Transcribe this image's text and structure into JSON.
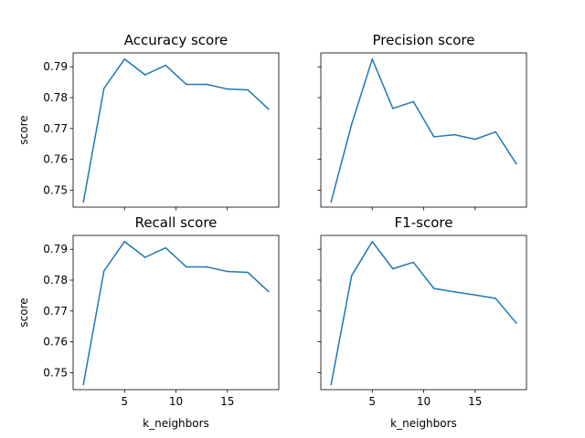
{
  "chart_data": {
    "type": "line",
    "layout": "2x2 grid, shared x axis per column, shared y axis per row",
    "line_color": "#1f77b4",
    "subplots": [
      {
        "title": "Accuracy score",
        "xlabel": "",
        "ylabel": "score",
        "xlim": [
          0,
          20
        ],
        "ylim": [
          0.7445,
          0.7945
        ],
        "xticks": [
          5,
          10,
          15
        ],
        "yticks": [
          0.75,
          0.76,
          0.77,
          0.78,
          0.79
        ],
        "show_xtick_labels": false,
        "show_ytick_labels": true,
        "x": [
          1,
          3,
          5,
          7,
          9,
          11,
          13,
          15,
          17,
          19
        ],
        "y": [
          0.7462,
          0.783,
          0.7925,
          0.7874,
          0.7905,
          0.7843,
          0.7843,
          0.7828,
          0.7825,
          0.7763
        ]
      },
      {
        "title": "Precision score",
        "xlabel": "",
        "ylabel": "",
        "xlim": [
          0,
          20
        ],
        "ylim": [
          0.7445,
          0.7945
        ],
        "xticks": [
          5,
          10,
          15
        ],
        "yticks": [
          0.75,
          0.76,
          0.77,
          0.78,
          0.79
        ],
        "show_xtick_labels": false,
        "show_ytick_labels": false,
        "x": [
          1,
          3,
          5,
          7,
          9,
          11,
          13,
          15,
          17,
          19
        ],
        "y": [
          0.7462,
          0.7714,
          0.7925,
          0.7765,
          0.7787,
          0.7673,
          0.768,
          0.7665,
          0.7689,
          0.7586
        ]
      },
      {
        "title": "Recall score",
        "xlabel": "k_neighbors",
        "ylabel": "score",
        "xlim": [
          0,
          20
        ],
        "ylim": [
          0.7445,
          0.7945
        ],
        "xticks": [
          5,
          10,
          15
        ],
        "yticks": [
          0.75,
          0.76,
          0.77,
          0.78,
          0.79
        ],
        "show_xtick_labels": true,
        "show_ytick_labels": true,
        "x": [
          1,
          3,
          5,
          7,
          9,
          11,
          13,
          15,
          17,
          19
        ],
        "y": [
          0.7462,
          0.783,
          0.7925,
          0.7874,
          0.7905,
          0.7843,
          0.7843,
          0.7828,
          0.7825,
          0.7763
        ]
      },
      {
        "title": "F1-score",
        "xlabel": "k_neighbors",
        "ylabel": "",
        "xlim": [
          0,
          20
        ],
        "ylim": [
          0.7445,
          0.7945
        ],
        "xticks": [
          5,
          10,
          15
        ],
        "yticks": [
          0.75,
          0.76,
          0.77,
          0.78,
          0.79
        ],
        "show_xtick_labels": true,
        "show_ytick_labels": false,
        "x": [
          1,
          3,
          5,
          7,
          9,
          11,
          13,
          15,
          17,
          19
        ],
        "y": [
          0.7462,
          0.7815,
          0.7925,
          0.7837,
          0.7858,
          0.7773,
          0.7762,
          0.7752,
          0.7741,
          0.7661
        ]
      }
    ]
  }
}
